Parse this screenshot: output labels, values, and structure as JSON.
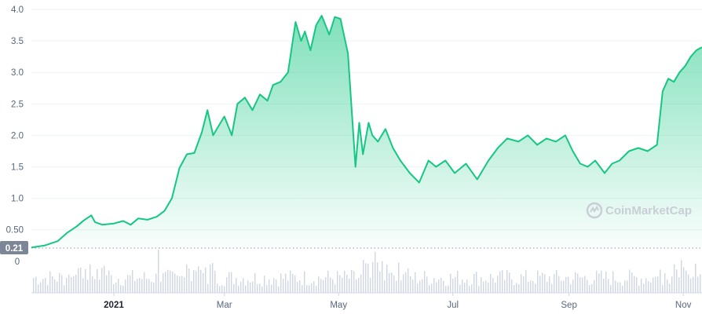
{
  "chart_data": {
    "type": "area",
    "watermark": "CoinMarketCap",
    "colors": {
      "line": "#16c784",
      "area_top": "#16c784",
      "volume": "#cfd6e4",
      "base_badge": "#7d8696"
    },
    "yticks": [
      {
        "v": 0.5,
        "label": "0.50"
      },
      {
        "v": 1.0,
        "label": "1.0"
      },
      {
        "v": 1.5,
        "label": "1.5"
      },
      {
        "v": 2.0,
        "label": "2.0"
      },
      {
        "v": 2.5,
        "label": "2.5"
      },
      {
        "v": 3.0,
        "label": "3.0"
      },
      {
        "v": 3.5,
        "label": "3.5"
      },
      {
        "v": 4.0,
        "label": "4.0"
      }
    ],
    "ylim": [
      0.21,
      4.0
    ],
    "base_label": "0.21",
    "volume_zero_label": "0",
    "xlim": [
      "2020-11-18",
      "2021-11-11"
    ],
    "xticks": [
      {
        "date": "2021-01-01",
        "label": "2021",
        "bold": true
      },
      {
        "date": "2021-03-01",
        "label": "Mar",
        "bold": false
      },
      {
        "date": "2021-05-01",
        "label": "May",
        "bold": false
      },
      {
        "date": "2021-07-01",
        "label": "Jul",
        "bold": false
      },
      {
        "date": "2021-09-01",
        "label": "Sep",
        "bold": false
      },
      {
        "date": "2021-11-01",
        "label": "Nov",
        "bold": false
      }
    ],
    "series": [
      {
        "x": [
          "2020-11-18",
          "2020-11-25",
          "2020-12-02",
          "2020-12-07",
          "2020-12-12",
          "2020-12-16",
          "2020-12-20",
          "2020-12-22",
          "2020-12-26",
          "2021-01-01",
          "2021-01-06",
          "2021-01-10",
          "2021-01-14",
          "2021-01-19",
          "2021-01-24",
          "2021-01-28",
          "2021-02-01",
          "2021-02-05",
          "2021-02-09",
          "2021-02-13",
          "2021-02-17",
          "2021-02-20",
          "2021-02-23",
          "2021-02-26",
          "2021-03-01",
          "2021-03-05",
          "2021-03-08",
          "2021-03-12",
          "2021-03-16",
          "2021-03-20",
          "2021-03-24",
          "2021-03-27",
          "2021-03-31",
          "2021-04-04",
          "2021-04-08",
          "2021-04-11",
          "2021-04-13",
          "2021-04-16",
          "2021-04-19",
          "2021-04-22",
          "2021-04-26",
          "2021-04-29",
          "2021-05-02",
          "2021-05-06",
          "2021-05-10",
          "2021-05-12",
          "2021-05-14",
          "2021-05-17",
          "2021-05-19",
          "2021-05-22",
          "2021-05-26",
          "2021-05-30",
          "2021-06-03",
          "2021-06-08",
          "2021-06-13",
          "2021-06-18",
          "2021-06-22",
          "2021-06-27",
          "2021-07-02",
          "2021-07-08",
          "2021-07-14",
          "2021-07-20",
          "2021-07-25",
          "2021-07-30",
          "2021-08-05",
          "2021-08-10",
          "2021-08-15",
          "2021-08-20",
          "2021-08-25",
          "2021-08-30",
          "2021-09-03",
          "2021-09-07",
          "2021-09-11",
          "2021-09-15",
          "2021-09-20",
          "2021-09-24",
          "2021-09-28",
          "2021-10-03",
          "2021-10-08",
          "2021-10-13",
          "2021-10-18",
          "2021-10-21",
          "2021-10-24",
          "2021-10-27",
          "2021-10-30",
          "2021-11-02",
          "2021-11-05",
          "2021-11-08",
          "2021-11-11"
        ],
        "y": [
          0.22,
          0.25,
          0.32,
          0.45,
          0.55,
          0.65,
          0.73,
          0.62,
          0.58,
          0.6,
          0.64,
          0.58,
          0.68,
          0.66,
          0.71,
          0.8,
          1.0,
          1.48,
          1.7,
          1.72,
          2.05,
          2.4,
          2.0,
          2.15,
          2.3,
          2.0,
          2.5,
          2.6,
          2.4,
          2.65,
          2.55,
          2.8,
          2.85,
          3.0,
          3.8,
          3.5,
          3.65,
          3.35,
          3.75,
          3.9,
          3.6,
          3.88,
          3.85,
          3.3,
          1.5,
          2.2,
          1.7,
          2.2,
          2.0,
          1.9,
          2.1,
          1.8,
          1.6,
          1.4,
          1.25,
          1.6,
          1.5,
          1.6,
          1.4,
          1.55,
          1.3,
          1.6,
          1.8,
          1.95,
          1.9,
          2.0,
          1.85,
          1.95,
          1.9,
          2.0,
          1.75,
          1.55,
          1.5,
          1.6,
          1.4,
          1.55,
          1.6,
          1.75,
          1.8,
          1.75,
          1.85,
          2.7,
          2.9,
          2.85,
          3.0,
          3.1,
          3.25,
          3.35,
          3.4
        ]
      }
    ]
  }
}
